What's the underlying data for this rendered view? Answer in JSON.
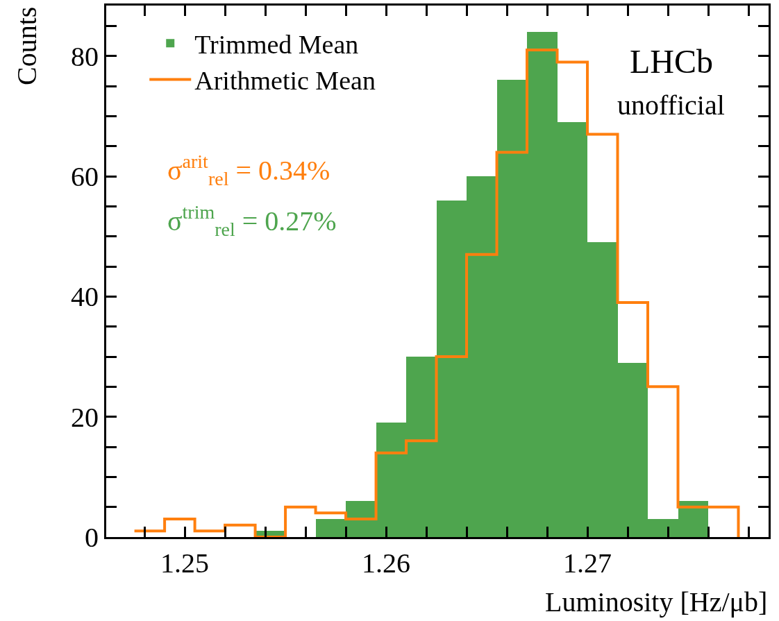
{
  "chart_data": {
    "type": "histogram",
    "xlabel": "Luminosity [Hz/μb]",
    "ylabel": "Counts",
    "bins": [
      1.2475,
      1.249,
      1.2505,
      1.252,
      1.2535,
      1.255,
      1.2565,
      1.258,
      1.2595,
      1.261,
      1.2625,
      1.264,
      1.2655,
      1.267,
      1.2685,
      1.27,
      1.2715,
      1.273,
      1.2745,
      1.276,
      1.2775
    ],
    "series": [
      {
        "name": "Trimmed Mean",
        "color": "#4ea54e",
        "values": [
          0,
          0,
          0,
          0,
          1,
          0,
          3,
          6,
          19,
          30,
          56,
          60,
          76,
          84,
          69,
          49,
          29,
          3,
          6,
          0
        ]
      },
      {
        "name": "Arithmetic Mean",
        "type": "step",
        "color": "#ff7f0e",
        "x": [
          1.2475,
          1.249,
          1.2505,
          1.252,
          1.2535,
          1.255,
          1.2565,
          1.258,
          1.2595,
          1.261,
          1.2625,
          1.264,
          1.2655,
          1.267,
          1.2685,
          1.27,
          1.2715,
          1.273,
          1.2745,
          1.276,
          1.2775
        ],
        "values": [
          1,
          3,
          1,
          2,
          0,
          5,
          4,
          3,
          14,
          16,
          30,
          47,
          64,
          81,
          79,
          67,
          39,
          25,
          5,
          5,
          0
        ]
      }
    ],
    "xlim": [
      1.2461,
      1.279
    ],
    "ylim": [
      0,
      88.4
    ],
    "xticks": [
      {
        "value": 1.248,
        "label": null
      },
      1.25,
      {
        "value": 1.252,
        "label": null
      },
      {
        "value": 1.254,
        "label": null
      },
      {
        "value": 1.256,
        "label": null
      },
      {
        "value": 1.258,
        "label": null
      },
      1.26,
      {
        "value": 1.262,
        "label": null
      },
      {
        "value": 1.264,
        "label": null
      },
      {
        "value": 1.266,
        "label": null
      },
      {
        "value": 1.268,
        "label": null
      },
      1.27,
      {
        "value": 1.272,
        "label": null
      },
      {
        "value": 1.274,
        "label": null
      },
      {
        "value": 1.276,
        "label": null
      },
      {
        "value": 1.278,
        "label": null
      }
    ],
    "yticks": [
      0,
      {
        "value": 5,
        "label": null
      },
      {
        "value": 10,
        "label": null
      },
      {
        "value": 15,
        "label": null
      },
      20,
      {
        "value": 25,
        "label": null
      },
      {
        "value": 30,
        "label": null
      },
      {
        "value": 35,
        "label": null
      },
      40,
      {
        "value": 45,
        "label": null
      },
      {
        "value": 50,
        "label": null
      },
      {
        "value": 55,
        "label": null
      },
      60,
      {
        "value": 65,
        "label": null
      },
      {
        "value": 70,
        "label": null
      },
      {
        "value": 75,
        "label": null
      },
      80,
      {
        "value": 85,
        "label": null
      }
    ],
    "grid": false,
    "legend": "top left",
    "annotations": [
      "σ$^{arit}$$_{rel}$ = 0.34%",
      "σ$^{trim}$$_{rel}$ = 0.27%",
      "LHCb",
      "unofficial"
    ]
  }
}
